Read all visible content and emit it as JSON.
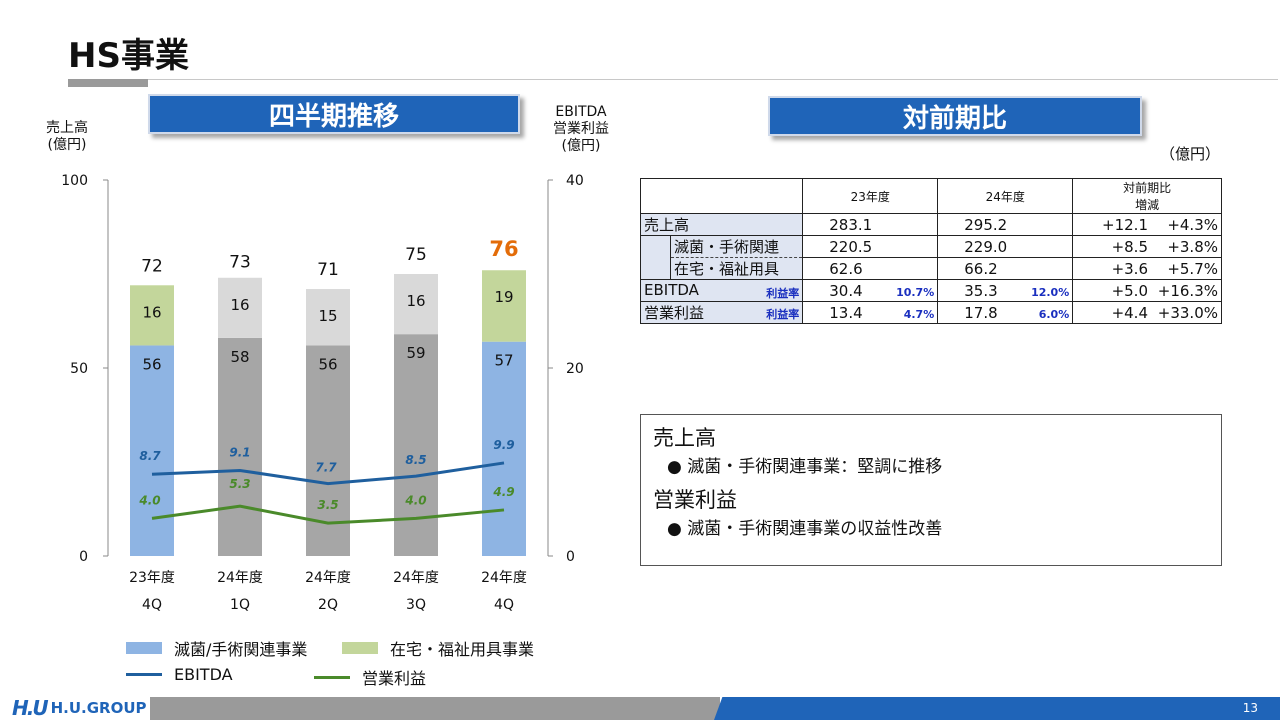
{
  "page": {
    "title": "HS事業",
    "page_number": "13"
  },
  "banners": {
    "left": "四半期推移",
    "right": "対前期比"
  },
  "left_axis_caption": "売上高\n(億円)",
  "right_axis_caption": "EBITDA\n営業利益\n(億円)",
  "unit_note": "（億円）",
  "chart_data": {
    "type": "bar",
    "categories": [
      "23年度\n4Q",
      "24年度\n1Q",
      "24年度\n2Q",
      "24年度\n3Q",
      "24年度\n4Q"
    ],
    "categories_line1": [
      "23年度",
      "24年度",
      "24年度",
      "24年度",
      "24年度"
    ],
    "categories_line2": [
      "4Q",
      "1Q",
      "2Q",
      "3Q",
      "4Q"
    ],
    "y_left": {
      "ylim": [
        0,
        100
      ],
      "ticks": [
        0,
        50,
        100
      ]
    },
    "y_right": {
      "ylim": [
        0,
        40
      ],
      "ticks": [
        0,
        20,
        40
      ]
    },
    "totals": [
      72,
      73,
      71,
      75,
      76
    ],
    "highlight_index": 4,
    "series": [
      {
        "name": "滅菌/手術関連事業",
        "values": [
          56,
          58,
          56,
          59,
          57
        ],
        "kind": "bar",
        "axis": "left"
      },
      {
        "name": "在宅・福祉用具事業",
        "values": [
          16,
          16,
          15,
          16,
          19
        ],
        "kind": "bar",
        "axis": "left"
      },
      {
        "name": "EBITDA",
        "values": [
          8.7,
          9.1,
          7.7,
          8.5,
          9.9
        ],
        "kind": "line",
        "axis": "right"
      },
      {
        "name": "営業利益",
        "values": [
          4.0,
          5.3,
          3.5,
          4.0,
          4.9
        ],
        "kind": "line",
        "axis": "right"
      }
    ],
    "colors": {
      "seg1_highlight": "#8eb4e3",
      "seg1_normal": "#a6a6a6",
      "seg2_highlight": "#c3d69b",
      "seg2_normal": "#d9d9d9",
      "ebitda": "#1f5f9e",
      "op": "#4a8a2a",
      "ebitda_label": "#1f5f9e",
      "op_label": "#4a8a2a",
      "highlight_total": "#e36c09"
    }
  },
  "legend": {
    "seg1": "滅菌/手術関連事業",
    "seg2": "在宅・福祉用具事業",
    "ebitda": "EBITDA",
    "op": "営業利益"
  },
  "comparison_table": {
    "headers": {
      "prev": "23年度",
      "curr": "24年度",
      "diff1": "対前期比",
      "diff2": "増減"
    },
    "rows": [
      {
        "label": "売上高",
        "prev": "283.1",
        "prev_rate": "",
        "curr": "295.2",
        "curr_rate": "",
        "diff": "+12.1",
        "pct": "+4.3%",
        "rate_label": ""
      },
      {
        "label": "滅菌・手術関連",
        "prev": "220.5",
        "prev_rate": "",
        "curr": "229.0",
        "curr_rate": "",
        "diff": "+8.5",
        "pct": "+3.8%",
        "rate_label": ""
      },
      {
        "label": "在宅・福祉用具",
        "prev": "62.6",
        "prev_rate": "",
        "curr": "66.2",
        "curr_rate": "",
        "diff": "+3.6",
        "pct": "+5.7%",
        "rate_label": ""
      },
      {
        "label": "EBITDA",
        "prev": "30.4",
        "prev_rate": "10.7%",
        "curr": "35.3",
        "curr_rate": "12.0%",
        "diff": "+5.0",
        "pct": "+16.3%",
        "rate_label": "利益率"
      },
      {
        "label": "営業利益",
        "prev": "13.4",
        "prev_rate": "4.7%",
        "curr": "17.8",
        "curr_rate": "6.0%",
        "diff": "+4.4",
        "pct": "+33.0%",
        "rate_label": "利益率"
      }
    ]
  },
  "notes": {
    "sales_heading": "売上高",
    "sales_bullet": "滅菌・手術関連事業：堅調に推移",
    "profit_heading": "営業利益",
    "profit_bullet": "滅菌・手術関連事業の収益性改善"
  },
  "brand": {
    "mark": "H.U",
    "name": "H.U.GROUP"
  }
}
